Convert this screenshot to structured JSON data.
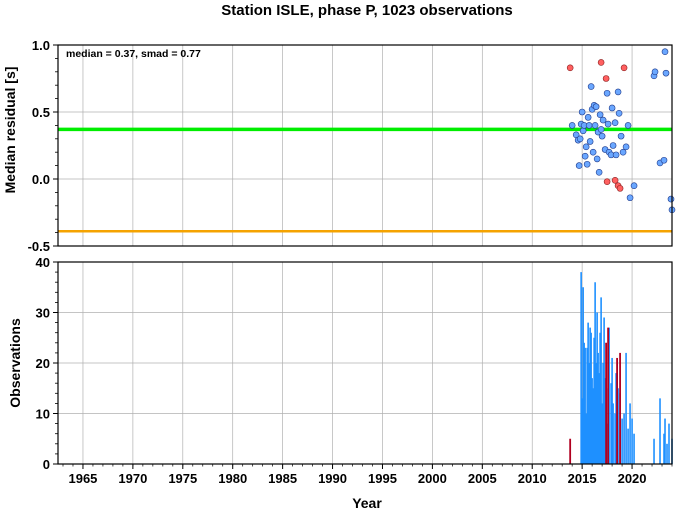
{
  "title": "Station ISLE, phase P, 1023 observations",
  "colors": {
    "median_line": "#00ee00",
    "ref_line": "#f5a300",
    "blue": "#1e90ff",
    "red": "#e03030",
    "darkred": "#b00020",
    "point_blue": "#6aa7ff",
    "point_red": "#ff6060",
    "grid": "#b0b0b0"
  },
  "chart_data": [
    {
      "type": "scatter",
      "ylabel": "Median residual [s]",
      "annotation": "median = 0.37, smad = 0.77",
      "xlim": [
        1962.5,
        2024
      ],
      "ylim": [
        -0.5,
        1.0
      ],
      "yticks": [
        1.0,
        0.5,
        0.0,
        -0.5
      ],
      "ytick_labels": [
        "1.0",
        "0.5",
        "0.0",
        "-0.5"
      ],
      "grid": true,
      "hlines": [
        {
          "y": 0.37,
          "color": "green"
        },
        {
          "y": -0.39,
          "color": "orange"
        }
      ],
      "points_blue": [
        [
          2014.0,
          0.4
        ],
        [
          2014.4,
          0.33
        ],
        [
          2014.6,
          0.29
        ],
        [
          2014.7,
          0.1
        ],
        [
          2014.8,
          0.3
        ],
        [
          2014.9,
          0.41
        ],
        [
          2015.0,
          0.5
        ],
        [
          2015.1,
          0.36
        ],
        [
          2015.2,
          0.4
        ],
        [
          2015.3,
          0.17
        ],
        [
          2015.4,
          0.24
        ],
        [
          2015.5,
          0.11
        ],
        [
          2015.6,
          0.46
        ],
        [
          2015.7,
          0.4
        ],
        [
          2015.8,
          0.28
        ],
        [
          2015.9,
          0.69
        ],
        [
          2016.0,
          0.52
        ],
        [
          2016.1,
          0.2
        ],
        [
          2016.2,
          0.55
        ],
        [
          2016.3,
          0.4
        ],
        [
          2016.4,
          0.54
        ],
        [
          2016.5,
          0.15
        ],
        [
          2016.6,
          0.35
        ],
        [
          2016.7,
          0.05
        ],
        [
          2016.8,
          0.48
        ],
        [
          2016.9,
          0.37
        ],
        [
          2017.0,
          0.32
        ],
        [
          2017.1,
          0.44
        ],
        [
          2017.3,
          0.22
        ],
        [
          2017.5,
          0.64
        ],
        [
          2017.6,
          0.41
        ],
        [
          2017.7,
          0.2
        ],
        [
          2017.9,
          0.18
        ],
        [
          2018.0,
          0.53
        ],
        [
          2018.1,
          0.25
        ],
        [
          2018.3,
          0.42
        ],
        [
          2018.4,
          0.18
        ],
        [
          2018.6,
          0.65
        ],
        [
          2018.7,
          0.49
        ],
        [
          2018.9,
          0.32
        ],
        [
          2019.1,
          0.2
        ],
        [
          2019.4,
          0.24
        ],
        [
          2019.6,
          0.4
        ],
        [
          2019.8,
          -0.14
        ],
        [
          2020.2,
          -0.05
        ],
        [
          2022.2,
          0.77
        ],
        [
          2022.3,
          0.8
        ],
        [
          2022.8,
          0.12
        ],
        [
          2023.2,
          0.14
        ],
        [
          2023.3,
          0.95
        ],
        [
          2023.4,
          0.79
        ],
        [
          2023.9,
          -0.15
        ],
        [
          2024.0,
          -0.23
        ]
      ],
      "points_red": [
        [
          2013.8,
          0.83
        ],
        [
          2016.9,
          0.87
        ],
        [
          2017.4,
          0.75
        ],
        [
          2017.5,
          -0.02
        ],
        [
          2018.3,
          -0.01
        ],
        [
          2018.6,
          -0.05
        ],
        [
          2018.8,
          -0.07
        ],
        [
          2019.2,
          0.83
        ]
      ]
    },
    {
      "type": "bar",
      "ylabel": "Observations",
      "xlabel": "Year",
      "xlim": [
        1962.5,
        2024
      ],
      "ylim": [
        0,
        40
      ],
      "yticks": [
        0,
        10,
        20,
        30,
        40
      ],
      "ytick_labels": [
        "0",
        "10",
        "20",
        "30",
        "40"
      ],
      "xticks": [
        1965,
        1970,
        1975,
        1980,
        1985,
        1990,
        1995,
        2000,
        2005,
        2010,
        2015,
        2020
      ],
      "xtick_labels": [
        "1965",
        "1970",
        "1975",
        "1980",
        "1985",
        "1990",
        "1995",
        "2000",
        "2005",
        "2010",
        "2015",
        "2020"
      ],
      "grid": true,
      "bars_blue": [
        [
          2014.9,
          38
        ],
        [
          2015.0,
          13
        ],
        [
          2015.1,
          35
        ],
        [
          2015.2,
          24
        ],
        [
          2015.3,
          23
        ],
        [
          2015.4,
          10
        ],
        [
          2015.5,
          23
        ],
        [
          2015.6,
          28
        ],
        [
          2015.7,
          20
        ],
        [
          2015.8,
          27
        ],
        [
          2015.9,
          26
        ],
        [
          2016.0,
          17
        ],
        [
          2016.1,
          15
        ],
        [
          2016.2,
          25
        ],
        [
          2016.3,
          36
        ],
        [
          2016.4,
          20
        ],
        [
          2016.5,
          30
        ],
        [
          2016.6,
          22
        ],
        [
          2016.7,
          18
        ],
        [
          2016.8,
          26
        ],
        [
          2016.9,
          33
        ],
        [
          2017.0,
          12
        ],
        [
          2017.1,
          20
        ],
        [
          2017.2,
          29
        ],
        [
          2017.3,
          17
        ],
        [
          2017.5,
          8
        ],
        [
          2017.6,
          15
        ],
        [
          2017.7,
          27
        ],
        [
          2017.9,
          16
        ],
        [
          2018.0,
          21
        ],
        [
          2018.1,
          12
        ],
        [
          2018.3,
          10
        ],
        [
          2018.4,
          18
        ],
        [
          2018.6,
          15
        ],
        [
          2018.8,
          14
        ],
        [
          2019.0,
          9
        ],
        [
          2019.2,
          10
        ],
        [
          2019.4,
          22
        ],
        [
          2019.6,
          7
        ],
        [
          2019.8,
          12
        ],
        [
          2020.0,
          9
        ],
        [
          2020.2,
          6
        ],
        [
          2022.2,
          5
        ],
        [
          2022.8,
          13
        ],
        [
          2023.2,
          6
        ],
        [
          2023.3,
          9
        ],
        [
          2023.5,
          4
        ],
        [
          2023.7,
          8
        ],
        [
          2024.0,
          5
        ]
      ],
      "bars_red": [
        [
          2013.8,
          5
        ],
        [
          2017.4,
          24
        ],
        [
          2017.6,
          27
        ],
        [
          2018.5,
          21
        ],
        [
          2018.8,
          22
        ]
      ]
    }
  ]
}
